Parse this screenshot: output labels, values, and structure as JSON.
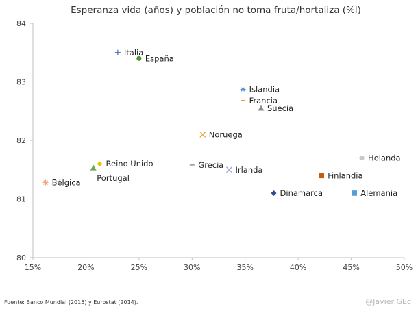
{
  "chart_data": {
    "type": "scatter",
    "title": "Esperanza vida (años) y población no toma fruta/hortaliza (%l)",
    "xlabel": "",
    "ylabel": "",
    "xlim": [
      15,
      50
    ],
    "ylim": [
      80,
      84
    ],
    "x_ticks": [
      15,
      20,
      25,
      30,
      35,
      40,
      45,
      50
    ],
    "x_tick_labels": [
      "15%",
      "20%",
      "25%",
      "30%",
      "35%",
      "40%",
      "45%",
      "50%"
    ],
    "y_ticks": [
      80,
      81,
      82,
      83,
      84
    ],
    "y_tick_labels": [
      "80",
      "81",
      "82",
      "83",
      "84"
    ],
    "points": [
      {
        "name": "Italia",
        "x": 23.0,
        "y": 83.5,
        "marker": "plus",
        "color": "#4a6bb5",
        "label_pos": "right"
      },
      {
        "name": "España",
        "x": 25.0,
        "y": 83.4,
        "marker": "circle",
        "color": "#5a8f3a",
        "label_pos": "right"
      },
      {
        "name": "Islandia",
        "x": 34.8,
        "y": 82.87,
        "marker": "star",
        "color": "#5b8fc9",
        "label_pos": "right"
      },
      {
        "name": "Francia",
        "x": 34.8,
        "y": 82.68,
        "marker": "dash",
        "color": "#e59c2c",
        "label_pos": "right"
      },
      {
        "name": "Suecia",
        "x": 36.5,
        "y": 82.55,
        "marker": "triangle",
        "color": "#8c8c8c",
        "label_pos": "right"
      },
      {
        "name": "Noruega",
        "x": 31.0,
        "y": 82.1,
        "marker": "x",
        "color": "#e8a33c",
        "label_pos": "right"
      },
      {
        "name": "Holanda",
        "x": 46.0,
        "y": 81.7,
        "marker": "circle",
        "color": "#c8c8c8",
        "label_pos": "right"
      },
      {
        "name": "Reino Unido",
        "x": 21.3,
        "y": 81.6,
        "marker": "diamond",
        "color": "#f2c200",
        "label_pos": "right"
      },
      {
        "name": "Grecia",
        "x": 30.0,
        "y": 81.58,
        "marker": "dash",
        "color": "#9a9a9a",
        "label_pos": "right"
      },
      {
        "name": "Irlanda",
        "x": 33.5,
        "y": 81.5,
        "marker": "x",
        "color": "#9aa7d6",
        "label_pos": "right"
      },
      {
        "name": "Portugal",
        "x": 20.7,
        "y": 81.53,
        "marker": "triangle",
        "color": "#6aa84f",
        "label_pos": "below-right"
      },
      {
        "name": "Finlandia",
        "x": 42.2,
        "y": 81.4,
        "marker": "square",
        "color": "#c55a11",
        "label_pos": "right"
      },
      {
        "name": "Bélgica",
        "x": 16.2,
        "y": 81.28,
        "marker": "star",
        "color": "#f4a582",
        "label_pos": "right"
      },
      {
        "name": "Dinamarca",
        "x": 37.7,
        "y": 81.1,
        "marker": "diamond",
        "color": "#2e4a8b",
        "label_pos": "right"
      },
      {
        "name": "Alemania",
        "x": 45.3,
        "y": 81.1,
        "marker": "square",
        "color": "#5b9bd5",
        "label_pos": "right"
      }
    ]
  },
  "footer": {
    "source": "Fuente: Banco  Mundial  (2015) y Eurostat (2014).",
    "credit": "@Javier GEc"
  }
}
